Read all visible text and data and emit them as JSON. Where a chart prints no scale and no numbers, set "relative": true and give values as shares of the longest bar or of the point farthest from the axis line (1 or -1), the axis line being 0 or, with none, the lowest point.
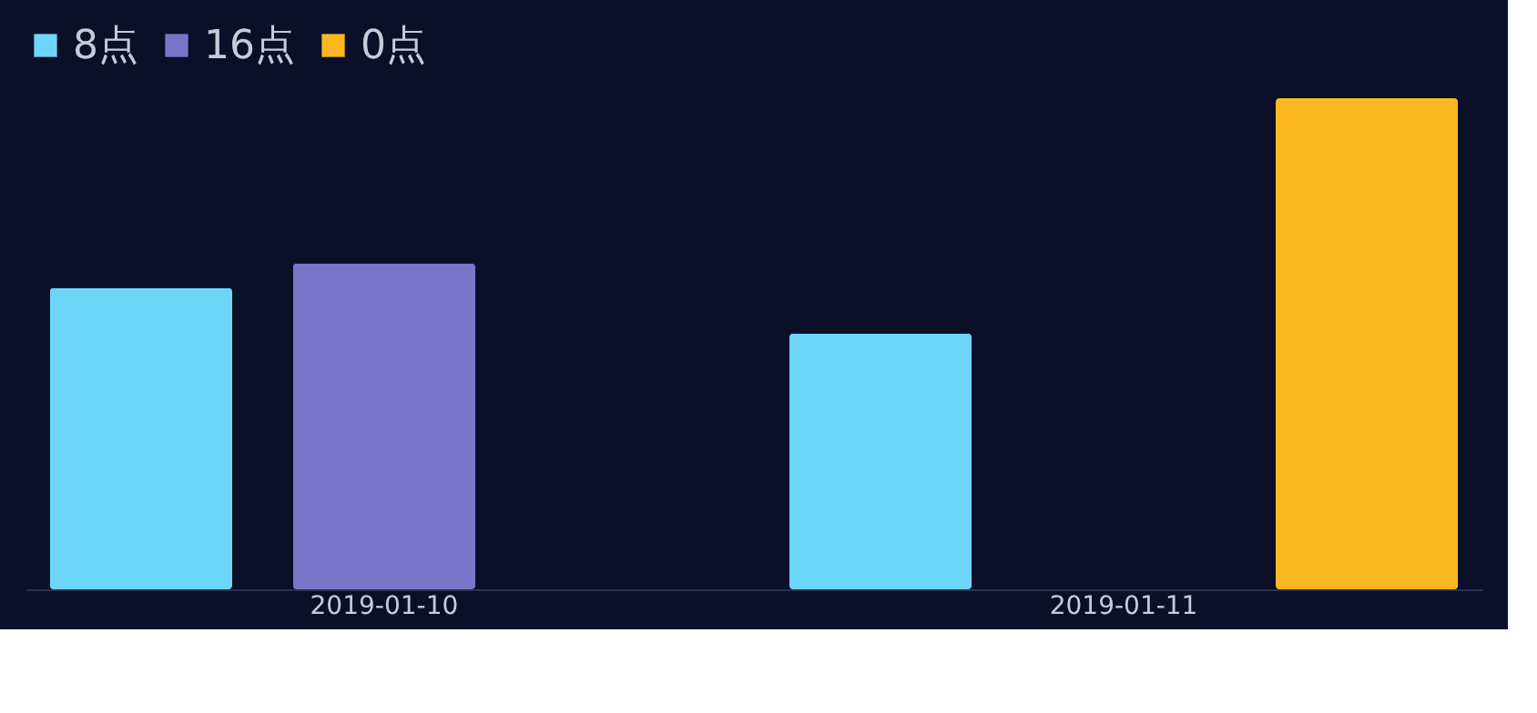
{
  "chart_data": {
    "type": "bar",
    "relative": true,
    "categories": [
      "2019-01-10",
      "2019-01-11"
    ],
    "series": [
      {
        "name": "8点",
        "color": "#6dd5f8",
        "values": [
          0.614,
          0.521
        ]
      },
      {
        "name": "16点",
        "color": "#7b74c8",
        "values": [
          0.664,
          null
        ]
      },
      {
        "name": "0点",
        "color": "#fbb71f",
        "values": [
          null,
          1
        ]
      }
    ],
    "legend": "top",
    "grid": false
  }
}
